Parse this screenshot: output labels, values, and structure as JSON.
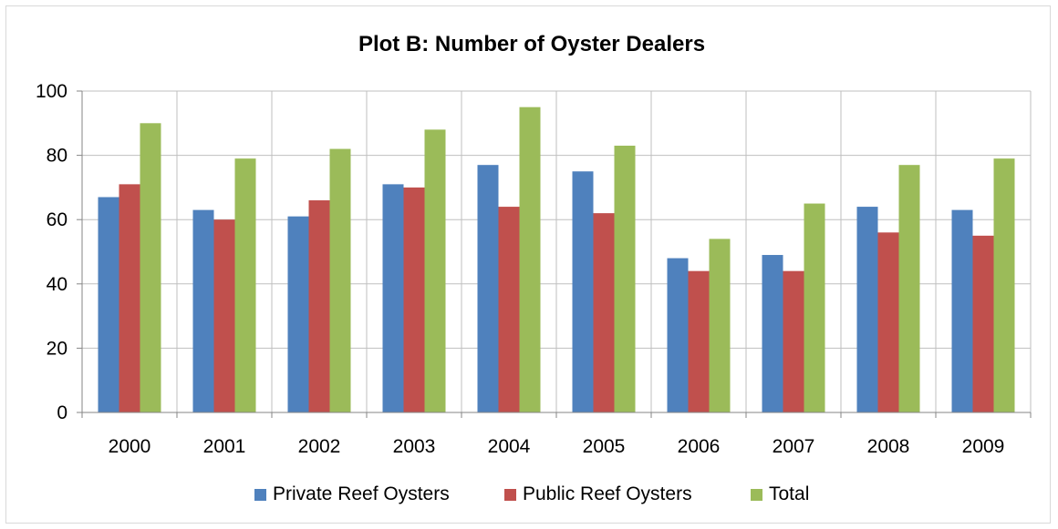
{
  "chart_data": {
    "type": "bar",
    "title": "Plot B: Number of Oyster Dealers",
    "xlabel": "",
    "ylabel": "",
    "categories": [
      "2000",
      "2001",
      "2002",
      "2003",
      "2004",
      "2005",
      "2006",
      "2007",
      "2008",
      "2009"
    ],
    "series": [
      {
        "name": "Private Reef Oysters",
        "color": "#4f81bd",
        "values": [
          67,
          63,
          61,
          71,
          77,
          75,
          48,
          49,
          64,
          63
        ]
      },
      {
        "name": "Public Reef Oysters",
        "color": "#c0504d",
        "values": [
          71,
          60,
          66,
          70,
          64,
          62,
          44,
          44,
          56,
          55
        ]
      },
      {
        "name": "Total",
        "color": "#9bbb59",
        "values": [
          90,
          79,
          82,
          88,
          95,
          83,
          54,
          65,
          77,
          79
        ]
      }
    ],
    "ylim": [
      0,
      100
    ],
    "yticks": [
      "0",
      "20",
      "40",
      "60",
      "80",
      "100"
    ],
    "grid": true,
    "legend_position": "bottom"
  }
}
